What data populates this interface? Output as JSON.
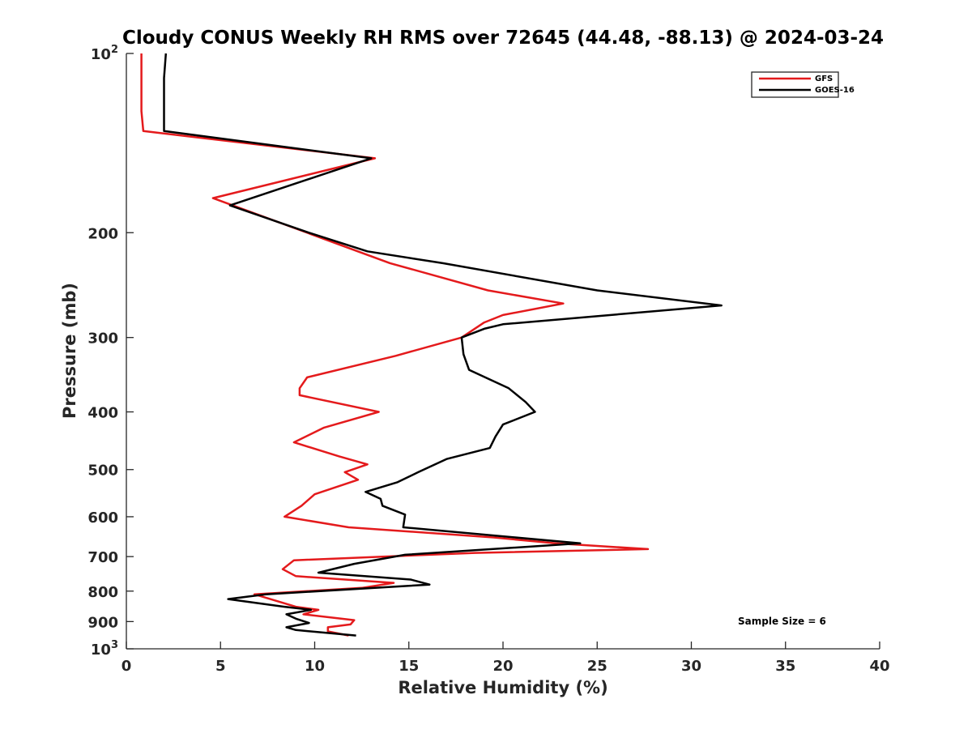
{
  "chart_data": {
    "type": "line",
    "title": "Cloudy CONUS Weekly RH RMS over 72645 (44.48, -88.13) @ 2024-03-24",
    "xlabel": "Relative Humidity (%)",
    "ylabel": "Pressure (mb)",
    "xlim": [
      0,
      40
    ],
    "ylim": [
      100,
      1000
    ],
    "y_scale": "log",
    "y_reversed": true,
    "grid": false,
    "legend_position": "top-right",
    "x_ticks": [
      "0",
      "5",
      "10",
      "15",
      "20",
      "25",
      "30",
      "35",
      "40"
    ],
    "y_ticks": [
      {
        "value": 100,
        "base": "10",
        "exp": "2"
      },
      {
        "value": 200,
        "label": "200"
      },
      {
        "value": 300,
        "label": "300"
      },
      {
        "value": 400,
        "label": "400"
      },
      {
        "value": 500,
        "label": "500"
      },
      {
        "value": 600,
        "label": "600"
      },
      {
        "value": 700,
        "label": "700"
      },
      {
        "value": 800,
        "label": "800"
      },
      {
        "value": 900,
        "label": "900"
      },
      {
        "value": 1000,
        "base": "10",
        "exp": "3"
      }
    ],
    "series": [
      {
        "name": "GFS",
        "color": "#e41a1c",
        "points": [
          [
            0.8,
            100
          ],
          [
            0.8,
            110
          ],
          [
            0.8,
            125
          ],
          [
            0.9,
            135
          ],
          [
            13.2,
            150
          ],
          [
            4.6,
            175
          ],
          [
            14.0,
            225
          ],
          [
            19.2,
            250
          ],
          [
            23.2,
            263
          ],
          [
            20.0,
            275
          ],
          [
            19.0,
            283
          ],
          [
            17.8,
            300
          ],
          [
            14.3,
            322
          ],
          [
            9.6,
            350
          ],
          [
            9.2,
            365
          ],
          [
            9.2,
            375
          ],
          [
            13.4,
            400
          ],
          [
            10.5,
            425
          ],
          [
            8.9,
            450
          ],
          [
            11.3,
            475
          ],
          [
            12.8,
            490
          ],
          [
            11.6,
            505
          ],
          [
            12.3,
            520
          ],
          [
            10.0,
            550
          ],
          [
            9.3,
            575
          ],
          [
            8.4,
            600
          ],
          [
            11.8,
            625
          ],
          [
            19.5,
            650
          ],
          [
            22.8,
            665
          ],
          [
            27.7,
            680
          ],
          [
            18.5,
            690
          ],
          [
            8.9,
            710
          ],
          [
            8.3,
            735
          ],
          [
            9.0,
            755
          ],
          [
            14.2,
            775
          ],
          [
            12.5,
            790
          ],
          [
            6.8,
            810
          ],
          [
            9.0,
            850
          ],
          [
            10.2,
            860
          ],
          [
            9.4,
            875
          ],
          [
            12.1,
            895
          ],
          [
            11.9,
            910
          ],
          [
            10.7,
            920
          ],
          [
            10.7,
            935
          ],
          [
            11.8,
            950
          ]
        ]
      },
      {
        "name": "GOES-16",
        "color": "#000000",
        "points": [
          [
            2.1,
            100
          ],
          [
            2.0,
            110
          ],
          [
            2.0,
            120
          ],
          [
            2.0,
            135
          ],
          [
            13.0,
            150
          ],
          [
            5.5,
            180
          ],
          [
            9.7,
            200
          ],
          [
            12.8,
            215
          ],
          [
            16.8,
            225
          ],
          [
            25.0,
            250
          ],
          [
            31.6,
            265
          ],
          [
            20.0,
            285
          ],
          [
            19.0,
            290
          ],
          [
            17.8,
            300
          ],
          [
            17.9,
            320
          ],
          [
            18.2,
            340
          ],
          [
            20.3,
            365
          ],
          [
            21.2,
            385
          ],
          [
            21.7,
            400
          ],
          [
            20.0,
            420
          ],
          [
            19.6,
            440
          ],
          [
            19.3,
            460
          ],
          [
            17.0,
            480
          ],
          [
            15.5,
            505
          ],
          [
            14.4,
            525
          ],
          [
            12.7,
            545
          ],
          [
            13.5,
            560
          ],
          [
            13.6,
            575
          ],
          [
            14.8,
            595
          ],
          [
            14.7,
            625
          ],
          [
            24.1,
            665
          ],
          [
            14.8,
            695
          ],
          [
            12.1,
            720
          ],
          [
            10.2,
            745
          ],
          [
            15.1,
            765
          ],
          [
            16.1,
            780
          ],
          [
            7.4,
            810
          ],
          [
            5.4,
            825
          ],
          [
            8.4,
            850
          ],
          [
            9.8,
            860
          ],
          [
            8.5,
            875
          ],
          [
            9.0,
            890
          ],
          [
            9.7,
            905
          ],
          [
            8.5,
            920
          ],
          [
            9.0,
            930
          ],
          [
            12.2,
            950
          ]
        ]
      }
    ],
    "annotation": "Sample Size = 6"
  }
}
